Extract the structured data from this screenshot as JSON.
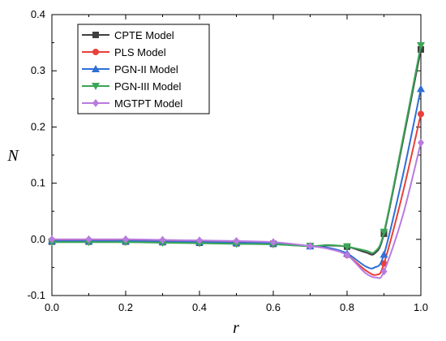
{
  "chart_data": {
    "type": "line",
    "title": "",
    "xlabel": "r",
    "ylabel": "N",
    "xlim": [
      0.0,
      1.0
    ],
    "ylim": [
      -0.1,
      0.4
    ],
    "xticks": [
      "0.0",
      "0.2",
      "0.4",
      "0.6",
      "0.8",
      "1.0"
    ],
    "yticks": [
      "-0.1",
      "0.0",
      "0.1",
      "0.2",
      "0.3",
      "0.4"
    ],
    "grid": false,
    "legend_position": "top-left",
    "series": [
      {
        "name": "CPTE Model",
        "color": "#404040",
        "marker": "square",
        "x": [
          0.0,
          0.1,
          0.2,
          0.3,
          0.4,
          0.5,
          0.6,
          0.7,
          0.8,
          0.9,
          1.0
        ],
        "y": [
          -0.004,
          -0.004,
          -0.004,
          -0.005,
          -0.006,
          -0.007,
          -0.008,
          -0.012,
          -0.013,
          0.01,
          0.338
        ],
        "curve": [
          [
            0.0,
            -0.004
          ],
          [
            0.1,
            -0.004
          ],
          [
            0.2,
            -0.004
          ],
          [
            0.3,
            -0.005
          ],
          [
            0.4,
            -0.006
          ],
          [
            0.5,
            -0.007
          ],
          [
            0.6,
            -0.008
          ],
          [
            0.7,
            -0.012
          ],
          [
            0.75,
            -0.011
          ],
          [
            0.8,
            -0.013
          ],
          [
            0.85,
            -0.023
          ],
          [
            0.875,
            -0.025
          ],
          [
            0.9,
            0.01
          ],
          [
            0.95,
            0.17
          ],
          [
            1.0,
            0.338
          ]
        ]
      },
      {
        "name": "PLS Model",
        "color": "#e8403a",
        "marker": "circle",
        "x": [
          0.0,
          0.1,
          0.2,
          0.3,
          0.4,
          0.5,
          0.6,
          0.7,
          0.8,
          0.9,
          1.0
        ],
        "y": [
          -0.002,
          -0.002,
          -0.002,
          -0.003,
          -0.004,
          -0.005,
          -0.007,
          -0.012,
          -0.028,
          -0.043,
          0.223
        ],
        "curve": [
          [
            0.0,
            -0.002
          ],
          [
            0.1,
            -0.002
          ],
          [
            0.2,
            -0.002
          ],
          [
            0.3,
            -0.003
          ],
          [
            0.4,
            -0.004
          ],
          [
            0.5,
            -0.005
          ],
          [
            0.6,
            -0.007
          ],
          [
            0.7,
            -0.012
          ],
          [
            0.75,
            -0.016
          ],
          [
            0.8,
            -0.028
          ],
          [
            0.85,
            -0.055
          ],
          [
            0.88,
            -0.063
          ],
          [
            0.9,
            -0.043
          ],
          [
            0.95,
            0.08
          ],
          [
            1.0,
            0.223
          ]
        ]
      },
      {
        "name": "PGN-II Model",
        "color": "#2f6fd6",
        "marker": "triangle-up",
        "x": [
          0.0,
          0.1,
          0.2,
          0.3,
          0.4,
          0.5,
          0.6,
          0.7,
          0.8,
          0.9,
          1.0
        ],
        "y": [
          -0.003,
          -0.003,
          -0.003,
          -0.004,
          -0.005,
          -0.006,
          -0.007,
          -0.012,
          -0.025,
          -0.027,
          0.268
        ],
        "curve": [
          [
            0.0,
            -0.003
          ],
          [
            0.1,
            -0.003
          ],
          [
            0.2,
            -0.003
          ],
          [
            0.3,
            -0.004
          ],
          [
            0.4,
            -0.005
          ],
          [
            0.5,
            -0.006
          ],
          [
            0.6,
            -0.007
          ],
          [
            0.7,
            -0.012
          ],
          [
            0.75,
            -0.015
          ],
          [
            0.8,
            -0.025
          ],
          [
            0.85,
            -0.048
          ],
          [
            0.875,
            -0.05
          ],
          [
            0.9,
            -0.027
          ],
          [
            0.95,
            0.11
          ],
          [
            1.0,
            0.268
          ]
        ]
      },
      {
        "name": "PGN-III Model",
        "color": "#3aa656",
        "marker": "triangle-down",
        "x": [
          0.0,
          0.1,
          0.2,
          0.3,
          0.4,
          0.5,
          0.6,
          0.7,
          0.8,
          0.9,
          1.0
        ],
        "y": [
          -0.005,
          -0.005,
          -0.005,
          -0.006,
          -0.007,
          -0.008,
          -0.009,
          -0.012,
          -0.013,
          0.013,
          0.345
        ],
        "curve": [
          [
            0.0,
            -0.005
          ],
          [
            0.1,
            -0.005
          ],
          [
            0.2,
            -0.005
          ],
          [
            0.3,
            -0.006
          ],
          [
            0.4,
            -0.007
          ],
          [
            0.5,
            -0.008
          ],
          [
            0.6,
            -0.009
          ],
          [
            0.7,
            -0.012
          ],
          [
            0.75,
            -0.01
          ],
          [
            0.8,
            -0.013
          ],
          [
            0.85,
            -0.02
          ],
          [
            0.875,
            -0.022
          ],
          [
            0.9,
            0.013
          ],
          [
            0.95,
            0.175
          ],
          [
            1.0,
            0.345
          ]
        ]
      },
      {
        "name": "MGTPT Model",
        "color": "#b87be0",
        "marker": "diamond",
        "x": [
          0.0,
          0.1,
          0.2,
          0.3,
          0.4,
          0.5,
          0.6,
          0.7,
          0.8,
          0.9,
          1.0
        ],
        "y": [
          0.0,
          0.0,
          0.0,
          -0.001,
          -0.002,
          -0.003,
          -0.005,
          -0.012,
          -0.028,
          -0.057,
          0.172
        ],
        "curve": [
          [
            0.0,
            0.0
          ],
          [
            0.1,
            0.0
          ],
          [
            0.2,
            0.0
          ],
          [
            0.3,
            -0.001
          ],
          [
            0.4,
            -0.002
          ],
          [
            0.5,
            -0.003
          ],
          [
            0.6,
            -0.005
          ],
          [
            0.7,
            -0.012
          ],
          [
            0.75,
            -0.017
          ],
          [
            0.8,
            -0.028
          ],
          [
            0.85,
            -0.06
          ],
          [
            0.88,
            -0.068
          ],
          [
            0.9,
            -0.057
          ],
          [
            0.95,
            0.04
          ],
          [
            1.0,
            0.172
          ]
        ]
      }
    ]
  }
}
